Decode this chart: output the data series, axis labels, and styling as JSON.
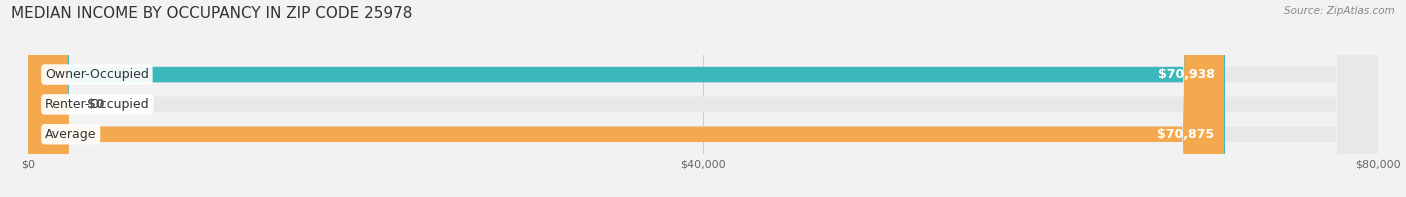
{
  "title": "MEDIAN INCOME BY OCCUPANCY IN ZIP CODE 25978",
  "source": "Source: ZipAtlas.com",
  "categories": [
    "Owner-Occupied",
    "Renter-Occupied",
    "Average"
  ],
  "values": [
    70938,
    0,
    70875
  ],
  "bar_colors": [
    "#3bb8bc",
    "#c9a8d4",
    "#f5a94e"
  ],
  "value_labels": [
    "$70,938",
    "$0",
    "$70,875"
  ],
  "xlim": [
    0,
    80000
  ],
  "xticks": [
    0,
    40000,
    80000
  ],
  "xtick_labels": [
    "$0",
    "$40,000",
    "$80,000"
  ],
  "bg_color": "#f2f2f2",
  "bar_bg_color": "#e8e8e8",
  "title_fontsize": 11,
  "label_fontsize": 9,
  "bar_height": 0.52,
  "figsize": [
    14.06,
    1.97
  ]
}
